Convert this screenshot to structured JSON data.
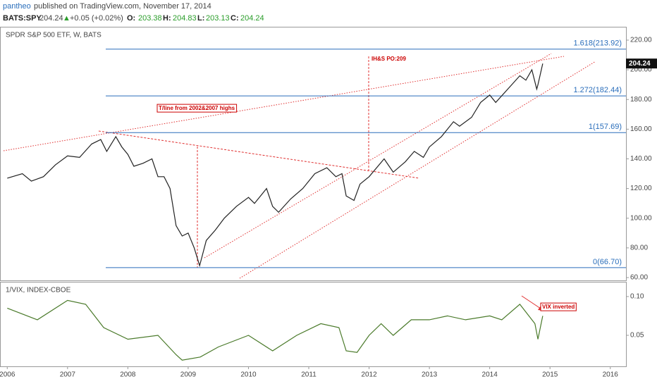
{
  "header": {
    "user": "pantheo",
    "published": "published on TradingView.com, November 17, 2014",
    "symbol": "BATS:SPY",
    "price": "204.24",
    "arrow": "▲",
    "change": "+0.05 (+0.02%)",
    "o_label": "O:",
    "o": "203.38",
    "h_label": "H:",
    "h": "204.83",
    "l_label": "L:",
    "l": "203.13",
    "c_label": "C:",
    "c": "204.24"
  },
  "chart_data": [
    {
      "type": "line",
      "title": "SPDR S&P 500 ETF, W, BATS",
      "color": "#222222",
      "x": [
        2006.0,
        2006.25,
        2006.4,
        2006.6,
        2006.8,
        2007.0,
        2007.2,
        2007.4,
        2007.55,
        2007.65,
        2007.8,
        2007.9,
        2008.0,
        2008.1,
        2008.25,
        2008.4,
        2008.5,
        2008.6,
        2008.7,
        2008.8,
        2008.9,
        2009.0,
        2009.1,
        2009.19,
        2009.3,
        2009.45,
        2009.6,
        2009.8,
        2010.0,
        2010.1,
        2010.3,
        2010.4,
        2010.5,
        2010.7,
        2010.9,
        2011.1,
        2011.3,
        2011.45,
        2011.55,
        2011.62,
        2011.75,
        2011.85,
        2012.0,
        2012.25,
        2012.4,
        2012.6,
        2012.75,
        2012.9,
        2013.0,
        2013.2,
        2013.4,
        2013.5,
        2013.7,
        2013.85,
        2014.0,
        2014.1,
        2014.3,
        2014.5,
        2014.6,
        2014.7,
        2014.78,
        2014.8,
        2014.88
      ],
      "values": [
        127,
        130,
        125,
        128,
        136,
        142,
        141,
        150,
        153,
        145,
        155,
        148,
        143,
        135,
        137,
        140,
        128,
        128,
        120,
        95,
        88,
        90,
        80,
        68,
        85,
        92,
        100,
        108,
        114,
        110,
        120,
        108,
        104,
        113,
        120,
        130,
        134,
        128,
        130,
        115,
        112,
        123,
        128,
        140,
        131,
        138,
        145,
        141,
        148,
        155,
        165,
        162,
        168,
        178,
        183,
        178,
        187,
        196,
        193,
        200,
        187,
        190,
        204.24
      ],
      "last_label": "204.24",
      "xlim": [
        2005.88,
        2016.26
      ],
      "xticks": [
        2006,
        2007,
        2008,
        2009,
        2010,
        2011,
        2012,
        2013,
        2014,
        2015,
        2016
      ],
      "ylim": [
        58.1,
        229
      ],
      "yticks": [
        {
          "value": 60,
          "label": "60.00"
        },
        {
          "value": 80,
          "label": "80.00"
        },
        {
          "value": 100,
          "label": "100.00"
        },
        {
          "value": 120,
          "label": "120.00"
        },
        {
          "value": 140,
          "label": "140.00"
        },
        {
          "value": 160,
          "label": "160.00"
        },
        {
          "value": 180,
          "label": "180.00"
        },
        {
          "value": 200,
          "label": "200.00"
        },
        {
          "value": 220,
          "label": "220.00"
        }
      ],
      "levels": [
        {
          "value": 213.92,
          "label": "1.618(213.92)"
        },
        {
          "value": 182.44,
          "label": "1.272(182.44)"
        },
        {
          "value": 157.69,
          "label": "1(157.69)"
        },
        {
          "value": 66.7,
          "label": "0(66.70)"
        }
      ],
      "annotations": [
        "T/line from 2002&2007 highs",
        "IH&S PO:209"
      ]
    },
    {
      "type": "line",
      "title": "1/VIX, INDEX-CBOE",
      "color": "#4a7a2a",
      "x": [
        2006.0,
        2006.5,
        2007.0,
        2007.3,
        2007.6,
        2008.0,
        2008.5,
        2008.8,
        2008.9,
        2009.2,
        2009.5,
        2010.0,
        2010.4,
        2010.8,
        2011.2,
        2011.5,
        2011.62,
        2011.8,
        2012.0,
        2012.2,
        2012.4,
        2012.7,
        2013.0,
        2013.3,
        2013.6,
        2014.0,
        2014.2,
        2014.5,
        2014.75,
        2014.8,
        2014.88
      ],
      "values": [
        0.085,
        0.07,
        0.095,
        0.09,
        0.06,
        0.045,
        0.05,
        0.025,
        0.018,
        0.022,
        0.035,
        0.05,
        0.03,
        0.05,
        0.065,
        0.06,
        0.03,
        0.028,
        0.05,
        0.065,
        0.05,
        0.07,
        0.07,
        0.075,
        0.07,
        0.075,
        0.07,
        0.09,
        0.065,
        0.045,
        0.075
      ],
      "ylim": [
        0.01,
        0.119
      ],
      "yticks": [
        {
          "value": 0.1,
          "label": "0.10"
        },
        0.05
      ],
      "annotations": [
        "VIX inverted"
      ]
    }
  ]
}
